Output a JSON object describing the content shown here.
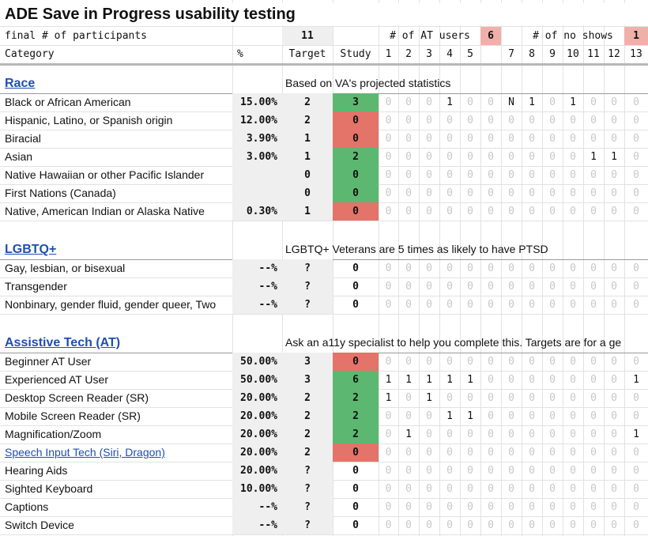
{
  "title": "ADE Save in Progress usability testing",
  "summary": {
    "participants_label": "final # of participants",
    "participants_value": "11",
    "at_users_label": "# of AT users",
    "at_users_value": "6",
    "no_shows_label": "# of no shows",
    "no_shows_value": "1"
  },
  "headers": {
    "category": "Category",
    "pct": "%",
    "target": "Target",
    "study": "Study",
    "participants": [
      "1",
      "2",
      "3",
      "4",
      "5",
      "",
      "7",
      "8",
      "9",
      "10",
      "11",
      "12",
      "13"
    ]
  },
  "sections": [
    {
      "name": "Race",
      "note": "Based on VA's projected statistics",
      "rows": [
        {
          "label": "Black or African American",
          "pct": "15.00%",
          "target": "2",
          "study": "3",
          "status": "green",
          "cells": [
            "0",
            "0",
            "0",
            "1",
            "0",
            "0",
            "N",
            "1",
            "0",
            "1",
            "0",
            "0",
            "0"
          ]
        },
        {
          "label": "Hispanic, Latino, or Spanish origin",
          "pct": "12.00%",
          "target": "2",
          "study": "0",
          "status": "red",
          "cells": [
            "0",
            "0",
            "0",
            "0",
            "0",
            "0",
            "0",
            "0",
            "0",
            "0",
            "0",
            "0",
            "0"
          ]
        },
        {
          "label": "Biracial",
          "pct": "3.90%",
          "target": "1",
          "study": "0",
          "status": "red",
          "cells": [
            "0",
            "0",
            "0",
            "0",
            "0",
            "0",
            "0",
            "0",
            "0",
            "0",
            "0",
            "0",
            "0"
          ]
        },
        {
          "label": "Asian",
          "pct": "3.00%",
          "target": "1",
          "study": "2",
          "status": "green",
          "cells": [
            "0",
            "0",
            "0",
            "0",
            "0",
            "0",
            "0",
            "0",
            "0",
            "0",
            "1",
            "1",
            "0"
          ]
        },
        {
          "label": "Native Hawaiian or other Pacific Islander",
          "pct": "",
          "target": "0",
          "study": "0",
          "status": "green",
          "cells": [
            "0",
            "0",
            "0",
            "0",
            "0",
            "0",
            "0",
            "0",
            "0",
            "0",
            "0",
            "0",
            "0"
          ]
        },
        {
          "label": "First Nations (Canada)",
          "pct": "",
          "target": "0",
          "study": "0",
          "status": "green",
          "cells": [
            "0",
            "0",
            "0",
            "0",
            "0",
            "0",
            "0",
            "0",
            "0",
            "0",
            "0",
            "0",
            "0"
          ]
        },
        {
          "label": "Native, American Indian or Alaska Native",
          "pct": "0.30%",
          "target": "1",
          "study": "0",
          "status": "red",
          "cells": [
            "0",
            "0",
            "0",
            "0",
            "0",
            "0",
            "0",
            "0",
            "0",
            "0",
            "0",
            "0",
            "0"
          ]
        }
      ]
    },
    {
      "name": "LGBTQ+",
      "note": "LGBTQ+ Veterans are 5 times as likely to have PTSD",
      "rows": [
        {
          "label": "Gay, lesbian, or bisexual",
          "pct": "--%",
          "target": "?",
          "study": "0",
          "status": "none",
          "cells": [
            "0",
            "0",
            "0",
            "0",
            "0",
            "0",
            "0",
            "0",
            "0",
            "0",
            "0",
            "0",
            "0"
          ]
        },
        {
          "label": "Transgender",
          "pct": "--%",
          "target": "?",
          "study": "0",
          "status": "none",
          "cells": [
            "0",
            "0",
            "0",
            "0",
            "0",
            "0",
            "0",
            "0",
            "0",
            "0",
            "0",
            "0",
            "0"
          ]
        },
        {
          "label": "Nonbinary, gender fluid, gender queer, Two",
          "pct": "--%",
          "target": "?",
          "study": "0",
          "status": "none",
          "cells": [
            "0",
            "0",
            "0",
            "0",
            "0",
            "0",
            "0",
            "0",
            "0",
            "0",
            "0",
            "0",
            "0"
          ]
        }
      ]
    },
    {
      "name": "Assistive Tech (AT)",
      "note": "Ask an a11y specialist to help you complete this. Targets are for a ge",
      "rows": [
        {
          "label": "Beginner AT User",
          "pct": "50.00%",
          "target": "3",
          "study": "0",
          "status": "red",
          "cells": [
            "0",
            "0",
            "0",
            "0",
            "0",
            "0",
            "0",
            "0",
            "0",
            "0",
            "0",
            "0",
            "0"
          ]
        },
        {
          "label": "Experienced AT User",
          "pct": "50.00%",
          "target": "3",
          "study": "6",
          "status": "green",
          "cells": [
            "1",
            "1",
            "1",
            "1",
            "1",
            "0",
            "0",
            "0",
            "0",
            "0",
            "0",
            "0",
            "1"
          ]
        },
        {
          "label": "Desktop Screen Reader (SR)",
          "pct": "20.00%",
          "target": "2",
          "study": "2",
          "status": "green",
          "cells": [
            "1",
            "0",
            "1",
            "0",
            "0",
            "0",
            "0",
            "0",
            "0",
            "0",
            "0",
            "0",
            "0"
          ]
        },
        {
          "label": "Mobile Screen Reader (SR)",
          "pct": "20.00%",
          "target": "2",
          "study": "2",
          "status": "green",
          "cells": [
            "0",
            "0",
            "0",
            "1",
            "1",
            "0",
            "0",
            "0",
            "0",
            "0",
            "0",
            "0",
            "0"
          ]
        },
        {
          "label": "Magnification/Zoom",
          "pct": "20.00%",
          "target": "2",
          "study": "2",
          "status": "green",
          "cells": [
            "0",
            "1",
            "0",
            "0",
            "0",
            "0",
            "0",
            "0",
            "0",
            "0",
            "0",
            "0",
            "1"
          ]
        },
        {
          "label": "Speech Input Tech (Siri, Dragon)",
          "pct": "20.00%",
          "target": "2",
          "study": "0",
          "status": "red",
          "link": true,
          "cells": [
            "0",
            "0",
            "0",
            "0",
            "0",
            "0",
            "0",
            "0",
            "0",
            "0",
            "0",
            "0",
            "0"
          ]
        },
        {
          "label": "Hearing Aids",
          "pct": "20.00%",
          "target": "?",
          "study": "0",
          "status": "none",
          "cells": [
            "0",
            "0",
            "0",
            "0",
            "0",
            "0",
            "0",
            "0",
            "0",
            "0",
            "0",
            "0",
            "0"
          ]
        },
        {
          "label": "Sighted Keyboard",
          "pct": "10.00%",
          "target": "?",
          "study": "0",
          "status": "none",
          "cells": [
            "0",
            "0",
            "0",
            "0",
            "0",
            "0",
            "0",
            "0",
            "0",
            "0",
            "0",
            "0",
            "0"
          ]
        },
        {
          "label": "Captions",
          "pct": "--%",
          "target": "?",
          "study": "0",
          "status": "none",
          "cells": [
            "0",
            "0",
            "0",
            "0",
            "0",
            "0",
            "0",
            "0",
            "0",
            "0",
            "0",
            "0",
            "0"
          ]
        },
        {
          "label": "Switch Device",
          "pct": "--%",
          "target": "?",
          "study": "0",
          "status": "none",
          "cells": [
            "0",
            "0",
            "0",
            "0",
            "0",
            "0",
            "0",
            "0",
            "0",
            "0",
            "0",
            "0",
            "0"
          ]
        }
      ]
    }
  ],
  "colors": {
    "green": "#5cb870",
    "red": "#e4736a",
    "pink": "#f0b0aa",
    "link": "#1f4fb0"
  }
}
